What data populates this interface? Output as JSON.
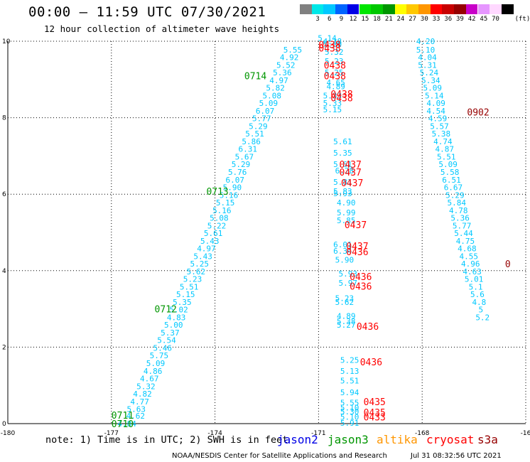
{
  "header": {
    "title": "00:00 – 11:59 UTC 07/30/2021",
    "subtitle": "12 hour collection of altimeter wave heights"
  },
  "color_scale": {
    "unit": "(ft)",
    "swatches": [
      {
        "color": "#808080",
        "label": ""
      },
      {
        "color": "#00e8e8",
        "label": "3"
      },
      {
        "color": "#00c8ff",
        "label": "6"
      },
      {
        "color": "#0064ff",
        "label": "9"
      },
      {
        "color": "#0000e6",
        "label": "12"
      },
      {
        "color": "#00e600",
        "label": "15"
      },
      {
        "color": "#00c800",
        "label": "18"
      },
      {
        "color": "#009600",
        "label": "21"
      },
      {
        "color": "#ffff00",
        "label": "24"
      },
      {
        "color": "#ffc800",
        "label": "27"
      },
      {
        "color": "#ff9600",
        "label": "30"
      },
      {
        "color": "#ff0000",
        "label": "33"
      },
      {
        "color": "#c80000",
        "label": "36"
      },
      {
        "color": "#960000",
        "label": "39"
      },
      {
        "color": "#c800c8",
        "label": "42"
      },
      {
        "color": "#e696ff",
        "label": "45"
      },
      {
        "color": "#ffd8ff",
        "label": "70"
      },
      {
        "color": "#000000",
        "label": ""
      }
    ]
  },
  "footer": {
    "note": "note: 1) Time is in UTC; 2) SWH is in feet",
    "satellites": [
      {
        "name": "jason2",
        "color": "#0000e6"
      },
      {
        "name": "jason3",
        "color": "#009600"
      },
      {
        "name": "altika",
        "color": "#ff9600"
      },
      {
        "name": "cryosat",
        "color": "#ff0000"
      },
      {
        "name": "s3a",
        "color": "#960000"
      }
    ],
    "credit": "NOAA/NESDIS Center for Satellite Applications and Research",
    "timestamp": "Jul 31 08:32:56 UTC 2021"
  },
  "chart_data": {
    "type": "scatter",
    "xlim": [
      -180,
      -165
    ],
    "ylim": [
      0,
      10
    ],
    "x_ticks": [
      "-180",
      "-177",
      "-174",
      "-171",
      "-168",
      "-16"
    ],
    "y_ticks": [
      "0",
      "2",
      "4",
      "6",
      "8",
      "10"
    ],
    "grid": true,
    "colors": {
      "swh": "#00c8ff",
      "jason3_time": "#009600",
      "cryosat_time": "#ff0000",
      "s3a_time": "#960000"
    },
    "swh_tracks": [
      {
        "points": [
          [
            -176.55,
            0.0,
            "4.84"
          ],
          [
            -176.3,
            0.2,
            "4.62"
          ],
          [
            -176.28,
            0.38,
            "5.63"
          ],
          [
            -176.18,
            0.58,
            "4.77"
          ],
          [
            -176.1,
            0.78,
            "4.82"
          ],
          [
            -176.0,
            0.98,
            "5.32"
          ],
          [
            -175.9,
            1.18,
            "4.67"
          ],
          [
            -175.8,
            1.38,
            "4.86"
          ],
          [
            -175.72,
            1.58,
            "5.09"
          ],
          [
            -175.62,
            1.78,
            "5.75"
          ],
          [
            -175.52,
            1.98,
            "5.46"
          ],
          [
            -175.4,
            2.18,
            "5.54"
          ],
          [
            -175.3,
            2.38,
            "5.37"
          ],
          [
            -175.2,
            2.58,
            "5.00"
          ],
          [
            -175.12,
            2.78,
            "4.83"
          ],
          [
            -175.05,
            2.98,
            "5.02"
          ],
          [
            -174.95,
            3.18,
            "5.35"
          ],
          [
            -174.85,
            3.38,
            "5.15"
          ],
          [
            -174.75,
            3.58,
            "5.51"
          ],
          [
            -174.65,
            3.78,
            "5.23"
          ],
          [
            -174.55,
            3.98,
            "5.62"
          ],
          [
            -174.45,
            4.18,
            "5.25"
          ],
          [
            -174.35,
            4.38,
            "5.43"
          ],
          [
            -174.25,
            4.58,
            "4.97"
          ],
          [
            -174.15,
            4.78,
            "5.43"
          ],
          [
            -174.05,
            4.98,
            "5.61"
          ],
          [
            -173.95,
            5.18,
            "5.22"
          ],
          [
            -173.88,
            5.38,
            "5.08"
          ],
          [
            -173.8,
            5.58,
            "5.16"
          ],
          [
            -173.7,
            5.78,
            "5.15"
          ],
          [
            -173.6,
            5.98,
            "5.16"
          ],
          [
            -173.5,
            6.18,
            "5.90"
          ],
          [
            -173.42,
            6.38,
            "6.07"
          ],
          [
            -173.35,
            6.58,
            "5.76"
          ],
          [
            -173.25,
            6.78,
            "5.29"
          ],
          [
            -173.15,
            6.98,
            "5.67"
          ],
          [
            -173.05,
            7.18,
            "6.31"
          ],
          [
            -172.95,
            7.38,
            "5.86"
          ],
          [
            -172.85,
            7.58,
            "5.51"
          ],
          [
            -172.75,
            7.78,
            "5.29"
          ],
          [
            -172.65,
            7.98,
            "5.77"
          ],
          [
            -172.55,
            8.18,
            "6.07"
          ],
          [
            -172.45,
            8.38,
            "5.09"
          ],
          [
            -172.35,
            8.58,
            "5.08"
          ],
          [
            -172.25,
            8.78,
            "5.82"
          ],
          [
            -172.15,
            8.98,
            "4.97"
          ],
          [
            -172.05,
            9.18,
            "5.36"
          ],
          [
            -171.95,
            9.38,
            "5.52"
          ],
          [
            -171.85,
            9.58,
            "4.92"
          ],
          [
            -171.75,
            9.78,
            "5.55"
          ]
        ]
      },
      {
        "points": [
          [
            -170.1,
            0.02,
            "5.91"
          ],
          [
            -170.1,
            0.18,
            "5.10"
          ],
          [
            -170.1,
            0.32,
            "5.30"
          ],
          [
            -170.1,
            0.42,
            "5.10"
          ],
          [
            -170.1,
            0.55,
            "5.55"
          ],
          [
            -170.1,
            0.82,
            "5.94"
          ],
          [
            -170.1,
            1.12,
            "5.51"
          ],
          [
            -170.1,
            1.38,
            "5.13"
          ],
          [
            -170.1,
            1.66,
            "5.25"
          ],
          [
            -170.2,
            2.58,
            "5.27"
          ],
          [
            -170.2,
            2.68,
            "5.38"
          ],
          [
            -170.2,
            2.82,
            "4.89"
          ],
          [
            -170.25,
            3.18,
            "5.62"
          ],
          [
            -170.25,
            3.28,
            "5.23"
          ],
          [
            -170.15,
            3.68,
            "5.97"
          ],
          [
            -170.15,
            3.92,
            "5.93"
          ],
          [
            -170.25,
            4.28,
            "5.90"
          ],
          [
            -170.3,
            4.52,
            "6.34"
          ],
          [
            -170.3,
            4.68,
            "6.01"
          ],
          [
            -170.2,
            5.32,
            "5.85"
          ],
          [
            -170.2,
            5.52,
            "5.99"
          ],
          [
            -170.2,
            5.78,
            "4.90"
          ],
          [
            -170.3,
            6.02,
            "5.93"
          ],
          [
            -170.3,
            6.08,
            "5.83"
          ],
          [
            -170.3,
            6.32,
            "5.81"
          ],
          [
            -170.25,
            6.62,
            "6.28"
          ],
          [
            -170.3,
            6.78,
            "5.61"
          ],
          [
            -170.3,
            7.08,
            "5.35"
          ],
          [
            -170.3,
            7.38,
            "5.61"
          ],
          [
            -170.6,
            8.22,
            "5.15"
          ],
          [
            -170.6,
            8.38,
            "5.33"
          ],
          [
            -170.6,
            8.58,
            "5.33"
          ],
          [
            -170.5,
            8.82,
            "4.89"
          ],
          [
            -170.5,
            8.92,
            "4.65"
          ],
          [
            -170.55,
            9.18,
            "5.25"
          ],
          [
            -170.55,
            9.48,
            "5.23"
          ],
          [
            -170.55,
            9.72,
            "5.32"
          ],
          [
            -170.6,
            9.92,
            "5.30"
          ],
          [
            -170.6,
            10.0,
            "4.28"
          ],
          [
            -170.75,
            10.08,
            "5.14"
          ]
        ]
      },
      {
        "points": [
          [
            -167.9,
            10.0,
            "4.20"
          ],
          [
            -167.9,
            9.78,
            "5.10"
          ],
          [
            -167.85,
            9.58,
            "4.04"
          ],
          [
            -167.85,
            9.38,
            "5.31"
          ],
          [
            -167.8,
            9.18,
            "5.24"
          ],
          [
            -167.75,
            8.98,
            "5.34"
          ],
          [
            -167.7,
            8.78,
            "5.09"
          ],
          [
            -167.65,
            8.58,
            "5.14"
          ],
          [
            -167.6,
            8.38,
            "4.09"
          ],
          [
            -167.6,
            8.18,
            "4.54"
          ],
          [
            -167.55,
            7.98,
            "4.59"
          ],
          [
            -167.5,
            7.78,
            "5.57"
          ],
          [
            -167.45,
            7.58,
            "5.38"
          ],
          [
            -167.4,
            7.38,
            "4.74"
          ],
          [
            -167.35,
            7.18,
            "4.87"
          ],
          [
            -167.3,
            6.98,
            "5.51"
          ],
          [
            -167.25,
            6.78,
            "5.09"
          ],
          [
            -167.2,
            6.58,
            "5.58"
          ],
          [
            -167.15,
            6.38,
            "6.51"
          ],
          [
            -167.1,
            6.18,
            "6.67"
          ],
          [
            -167.05,
            5.98,
            "5.29"
          ],
          [
            -167.0,
            5.78,
            "5.84"
          ],
          [
            -166.95,
            5.58,
            "4.78"
          ],
          [
            -166.9,
            5.38,
            "5.36"
          ],
          [
            -166.85,
            5.18,
            "5.77"
          ],
          [
            -166.8,
            4.98,
            "5.44"
          ],
          [
            -166.75,
            4.78,
            "4.75"
          ],
          [
            -166.7,
            4.58,
            "4.68"
          ],
          [
            -166.65,
            4.38,
            "4.55"
          ],
          [
            -166.6,
            4.18,
            "4.96"
          ],
          [
            -166.55,
            3.98,
            "4.63"
          ],
          [
            -166.5,
            3.78,
            "5.01"
          ],
          [
            -166.45,
            3.58,
            "5.1"
          ],
          [
            -166.4,
            3.38,
            "5.6"
          ],
          [
            -166.35,
            3.18,
            "4.8"
          ],
          [
            -166.3,
            2.98,
            "5"
          ],
          [
            -166.25,
            2.78,
            "5.2"
          ]
        ]
      }
    ],
    "time_labels": [
      {
        "x": -177.0,
        "y": 0.0,
        "label": "0710",
        "mission": "jason3_time"
      },
      {
        "x": -177.0,
        "y": 0.22,
        "label": "0711",
        "mission": "jason3_time"
      },
      {
        "x": -175.75,
        "y": 3.0,
        "label": "0712",
        "mission": "jason3_time"
      },
      {
        "x": -174.25,
        "y": 6.08,
        "label": "0713",
        "mission": "jason3_time"
      },
      {
        "x": -173.15,
        "y": 9.1,
        "label": "0714",
        "mission": "jason3_time"
      },
      {
        "x": -169.7,
        "y": 0.18,
        "label": "0433",
        "mission": "cryosat_time"
      },
      {
        "x": -169.7,
        "y": 0.3,
        "label": "0435",
        "mission": "cryosat_time"
      },
      {
        "x": -169.7,
        "y": 0.58,
        "label": "0435",
        "mission": "cryosat_time"
      },
      {
        "x": -169.8,
        "y": 1.62,
        "label": "0436",
        "mission": "cryosat_time"
      },
      {
        "x": -169.9,
        "y": 2.55,
        "label": "0436",
        "mission": "cryosat_time"
      },
      {
        "x": -170.1,
        "y": 3.6,
        "label": "0436",
        "mission": "cryosat_time"
      },
      {
        "x": -170.1,
        "y": 3.85,
        "label": "0436",
        "mission": "cryosat_time"
      },
      {
        "x": -170.2,
        "y": 4.5,
        "label": "0436",
        "mission": "cryosat_time"
      },
      {
        "x": -170.2,
        "y": 4.65,
        "label": "0437",
        "mission": "cryosat_time"
      },
      {
        "x": -170.25,
        "y": 5.2,
        "label": "0437",
        "mission": "cryosat_time"
      },
      {
        "x": -170.35,
        "y": 6.3,
        "label": "0437",
        "mission": "cryosat_time"
      },
      {
        "x": -170.4,
        "y": 6.58,
        "label": "0437",
        "mission": "cryosat_time"
      },
      {
        "x": -170.4,
        "y": 6.78,
        "label": "0437",
        "mission": "cryosat_time"
      },
      {
        "x": -170.65,
        "y": 8.52,
        "label": "0438",
        "mission": "cryosat_time"
      },
      {
        "x": -170.65,
        "y": 8.62,
        "label": "0438",
        "mission": "cryosat_time"
      },
      {
        "x": -170.85,
        "y": 9.1,
        "label": "0438",
        "mission": "cryosat_time"
      },
      {
        "x": -170.85,
        "y": 9.38,
        "label": "0438",
        "mission": "cryosat_time"
      },
      {
        "x": -171.0,
        "y": 9.82,
        "label": "0438",
        "mission": "cryosat_time"
      },
      {
        "x": -171.0,
        "y": 9.92,
        "label": "0438",
        "mission": "cryosat_time"
      },
      {
        "x": -166.7,
        "y": 8.15,
        "label": "0902",
        "mission": "s3a_time"
      },
      {
        "x": -165.6,
        "y": 4.18,
        "label": "0",
        "mission": "s3a_time"
      }
    ]
  }
}
